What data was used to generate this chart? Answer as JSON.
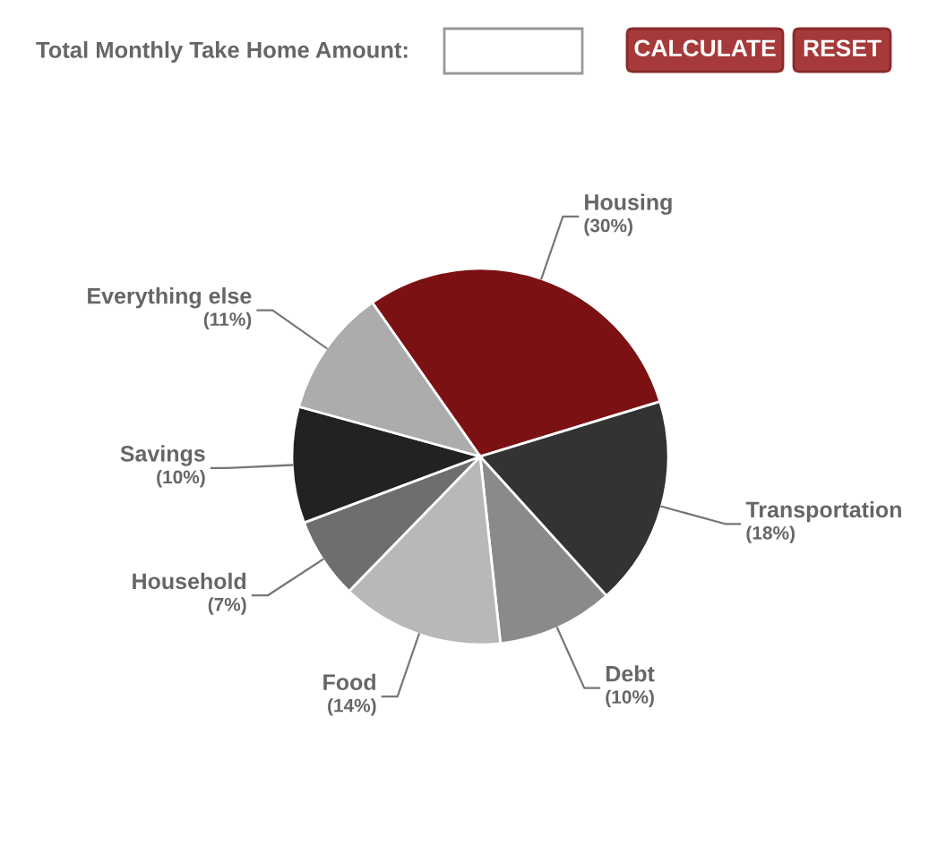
{
  "chart_data": {
    "type": "pie",
    "title": "Total Monthly Take Home Amount:",
    "categories": [
      "Housing",
      "Transportation",
      "Debt",
      "Food",
      "Household",
      "Savings",
      "Everything else"
    ],
    "values": [
      30,
      18,
      10,
      14,
      7,
      10,
      11
    ],
    "colors": [
      "#7b1113",
      "#333333",
      "#8a8a8a",
      "#b8b8b8",
      "#6e6e6e",
      "#222222",
      "#acacac"
    ],
    "value_labels": [
      "(30%)",
      "(18%)",
      "(10%)",
      "(14%)",
      "(7%)",
      "(10%)",
      "(11%)"
    ],
    "annotations": [
      "CALCULATE",
      "RESET"
    ]
  }
}
